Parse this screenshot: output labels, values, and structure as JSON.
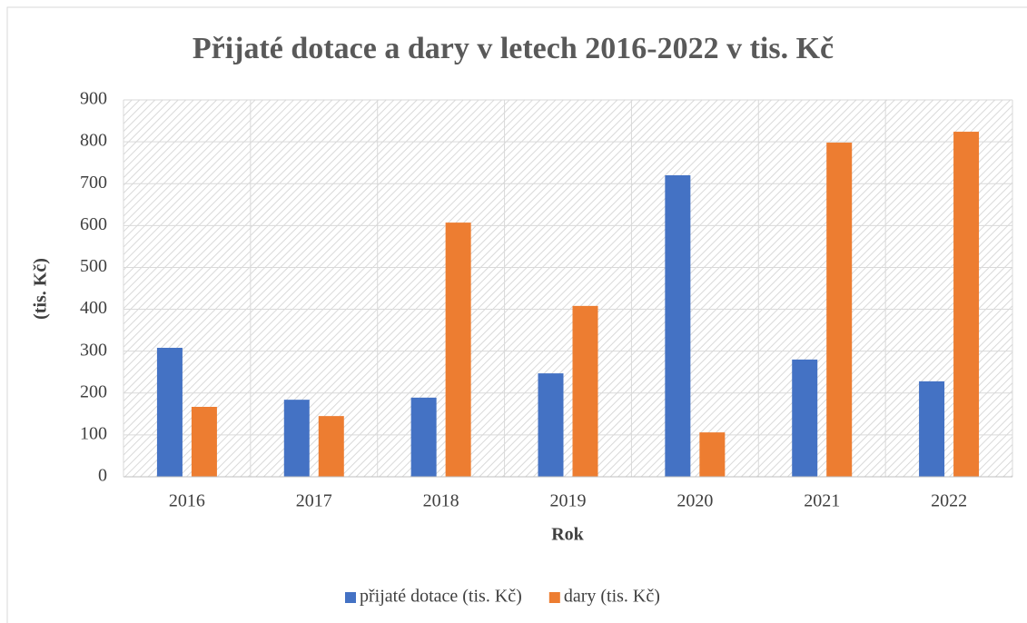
{
  "chart_data": {
    "type": "bar",
    "title": "Přijaté dotace a dary v letech 2016-2022 v tis. Kč",
    "x_label": "Rok",
    "y_label": "(tis. Kč)",
    "categories": [
      "2016",
      "2017",
      "2018",
      "2019",
      "2020",
      "2021",
      "2022"
    ],
    "series": [
      {
        "name": "přijaté dotace (tis. Kč)",
        "color": "#4472c4",
        "values": [
          308,
          184,
          189,
          247,
          720,
          280,
          228
        ]
      },
      {
        "name": "dary (tis. Kč)",
        "color": "#ed7d31",
        "values": [
          167,
          145,
          607,
          408,
          106,
          798,
          824
        ]
      }
    ],
    "ylim": [
      0,
      900
    ],
    "yticks": [
      0,
      100,
      200,
      300,
      400,
      500,
      600,
      700,
      800,
      900
    ],
    "grid": true,
    "legend": "bottom"
  }
}
